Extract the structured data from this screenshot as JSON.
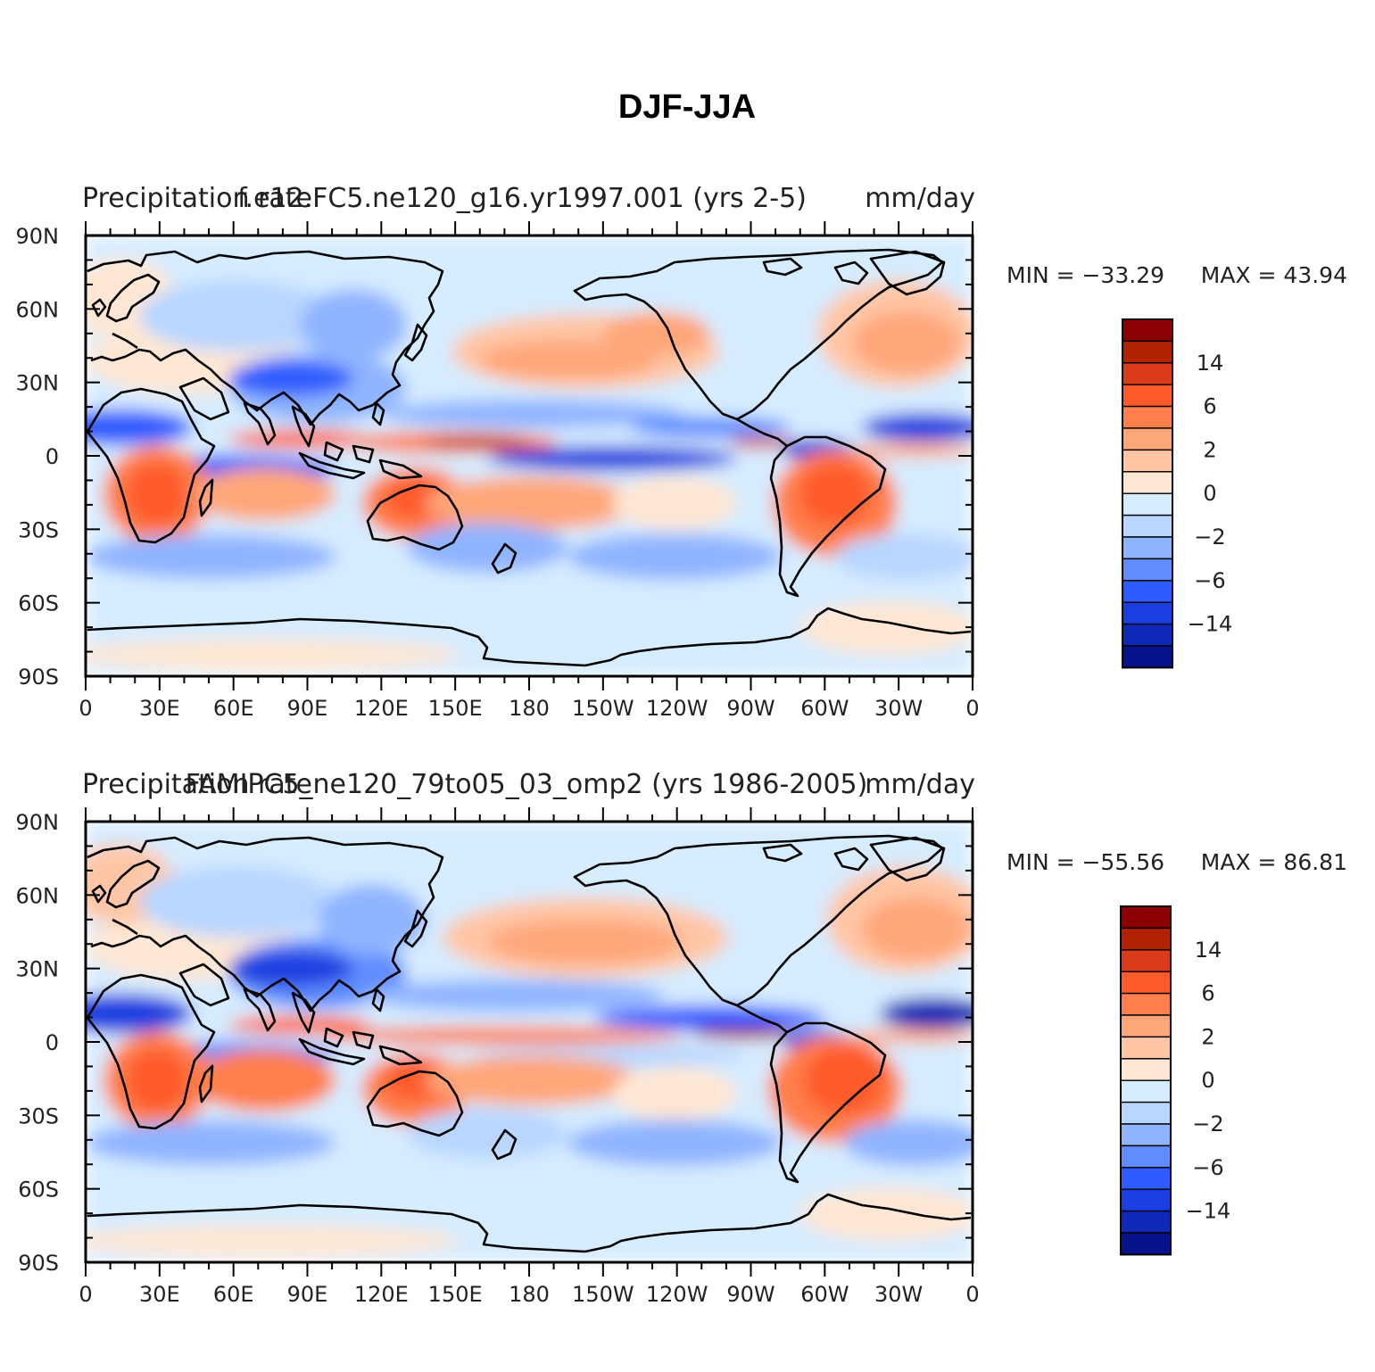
{
  "figure": {
    "title": "DJF-JJA"
  },
  "panels": [
    {
      "case_name": "f.e12.FC5.ne120_g16.yr1997.001 (yrs 2-5)",
      "variable_label": "Precipitation rate",
      "units": "mm/day",
      "min_label": "MIN = −33.29",
      "max_label": "MAX =   43.94"
    },
    {
      "case_name": "FAMIPC5_ne120_79to05_03_omp2 (yrs 1986-2005)",
      "variable_label": "Precipitation rate",
      "units": "mm/day",
      "min_label": "MIN = −55.56",
      "max_label": "MAX =   86.81"
    }
  ],
  "axes": {
    "lat_ticks": [
      "90N",
      "60N",
      "30N",
      "0",
      "30S",
      "60S",
      "90S"
    ],
    "lon_ticks": [
      "0",
      "30E",
      "60E",
      "90E",
      "120E",
      "150E",
      "180",
      "150W",
      "120W",
      "90W",
      "60W",
      "30W",
      "0"
    ]
  },
  "colorbar": {
    "colors": [
      "#8b0000",
      "#b22200",
      "#d93a1a",
      "#ff5a29",
      "#ff7f4c",
      "#ffa679",
      "#ffc6a6",
      "#ffe7d3",
      "#d6ecff",
      "#b8d6ff",
      "#8fb4ff",
      "#5f8cff",
      "#2f5cff",
      "#1a3fe0",
      "#1029b8",
      "#08128a"
    ],
    "labels": [
      "14",
      "6",
      "2",
      "0",
      "−2",
      "−6",
      "−14"
    ]
  },
  "colors": {
    "ocean_background": "#d6ecff",
    "coastline": "#000000"
  }
}
